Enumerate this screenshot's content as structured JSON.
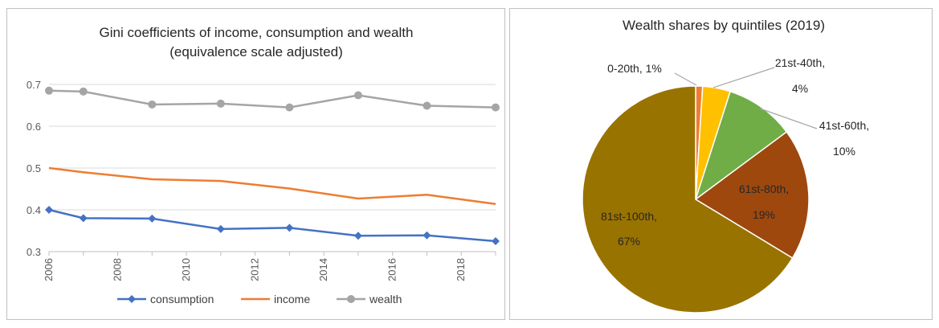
{
  "chart_data": [
    {
      "type": "line",
      "title": "Gini coefficients of income, consumption and wealth",
      "subtitle": "(equivalence scale adjusted)",
      "xlabel": "",
      "ylabel": "",
      "xlim": [
        2006,
        2019
      ],
      "ylim": [
        0.3,
        0.7
      ],
      "y_ticks": [
        0.3,
        0.4,
        0.5,
        0.6,
        0.7
      ],
      "y_tick_labels": [
        "0.3",
        "0.4",
        "0.5",
        "0.6",
        "0.7"
      ],
      "x_ticks": [
        2006,
        2008,
        2010,
        2012,
        2014,
        2016,
        2018
      ],
      "x_tick_labels": [
        "2006",
        "2008",
        "2010",
        "2012",
        "2014",
        "2016",
        "2018"
      ],
      "grid": "horizontal",
      "legend_position": "bottom",
      "series": [
        {
          "name": "consumption",
          "color": "#4472c4",
          "marker": "diamond",
          "x": [
            2006,
            2007,
            2009,
            2011,
            2013,
            2015,
            2017,
            2019
          ],
          "y": [
            0.4,
            0.38,
            0.379,
            0.354,
            0.357,
            0.338,
            0.339,
            0.325
          ]
        },
        {
          "name": "income",
          "color": "#ed7d31",
          "marker": "none",
          "x": [
            2006,
            2007,
            2009,
            2011,
            2013,
            2015,
            2017,
            2019
          ],
          "y": [
            0.5,
            0.49,
            0.473,
            0.469,
            0.451,
            0.427,
            0.436,
            0.414
          ]
        },
        {
          "name": "wealth",
          "color": "#a5a5a5",
          "marker": "circle",
          "x": [
            2006,
            2007,
            2009,
            2011,
            2013,
            2015,
            2017,
            2019
          ],
          "y": [
            0.685,
            0.683,
            0.652,
            0.654,
            0.645,
            0.674,
            0.649,
            0.645
          ]
        }
      ]
    },
    {
      "type": "pie",
      "title": "Wealth shares by quintiles (2019)",
      "slices": [
        {
          "label": "0-20th",
          "value": 1,
          "display": "1%",
          "color": "#ed7d31"
        },
        {
          "label": "21st-40th",
          "value": 4,
          "display": "4%",
          "color": "#ffc000"
        },
        {
          "label": "41st-60th",
          "value": 10,
          "display": "10%",
          "color": "#70ad47"
        },
        {
          "label": "61st-80th",
          "value": 19,
          "display": "19%",
          "color": "#9e480e"
        },
        {
          "label": "81st-100th",
          "value": 67,
          "display": "67%",
          "color": "#997300"
        }
      ]
    }
  ]
}
